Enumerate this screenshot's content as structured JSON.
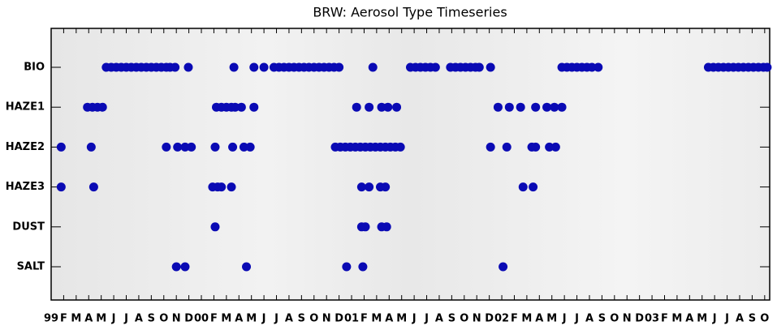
{
  "chart_data": {
    "type": "scatter",
    "title": "BRW: Aerosol Type Timeseries",
    "color": "#0a0ab4",
    "xlim": [
      0,
      57.4
    ],
    "xticks": [
      {
        "value": 0,
        "label": "99"
      },
      {
        "value": 1,
        "label": "F"
      },
      {
        "value": 2,
        "label": "M"
      },
      {
        "value": 3,
        "label": "A"
      },
      {
        "value": 4,
        "label": "M"
      },
      {
        "value": 5,
        "label": "J"
      },
      {
        "value": 6,
        "label": "J"
      },
      {
        "value": 7,
        "label": "A"
      },
      {
        "value": 8,
        "label": "S"
      },
      {
        "value": 9,
        "label": "O"
      },
      {
        "value": 10,
        "label": "N"
      },
      {
        "value": 11,
        "label": "D"
      },
      {
        "value": 12,
        "label": "00"
      },
      {
        "value": 13,
        "label": "F"
      },
      {
        "value": 14,
        "label": "M"
      },
      {
        "value": 15,
        "label": "A"
      },
      {
        "value": 16,
        "label": "M"
      },
      {
        "value": 17,
        "label": "J"
      },
      {
        "value": 18,
        "label": "J"
      },
      {
        "value": 19,
        "label": "A"
      },
      {
        "value": 20,
        "label": "S"
      },
      {
        "value": 21,
        "label": "O"
      },
      {
        "value": 22,
        "label": "N"
      },
      {
        "value": 23,
        "label": "D"
      },
      {
        "value": 24,
        "label": "01"
      },
      {
        "value": 25,
        "label": "F"
      },
      {
        "value": 26,
        "label": "M"
      },
      {
        "value": 27,
        "label": "A"
      },
      {
        "value": 28,
        "label": "M"
      },
      {
        "value": 29,
        "label": "J"
      },
      {
        "value": 30,
        "label": "J"
      },
      {
        "value": 31,
        "label": "A"
      },
      {
        "value": 32,
        "label": "S"
      },
      {
        "value": 33,
        "label": "O"
      },
      {
        "value": 34,
        "label": "N"
      },
      {
        "value": 35,
        "label": "D"
      },
      {
        "value": 36,
        "label": "02"
      },
      {
        "value": 37,
        "label": "F"
      },
      {
        "value": 38,
        "label": "M"
      },
      {
        "value": 39,
        "label": "A"
      },
      {
        "value": 40,
        "label": "M"
      },
      {
        "value": 41,
        "label": "J"
      },
      {
        "value": 42,
        "label": "J"
      },
      {
        "value": 43,
        "label": "A"
      },
      {
        "value": 44,
        "label": "S"
      },
      {
        "value": 45,
        "label": "O"
      },
      {
        "value": 46,
        "label": "N"
      },
      {
        "value": 47,
        "label": "D"
      },
      {
        "value": 48,
        "label": "03"
      },
      {
        "value": 49,
        "label": "F"
      },
      {
        "value": 50,
        "label": "M"
      },
      {
        "value": 51,
        "label": "A"
      },
      {
        "value": 52,
        "label": "M"
      },
      {
        "value": 53,
        "label": "J"
      },
      {
        "value": 54,
        "label": "J"
      },
      {
        "value": 55,
        "label": "A"
      },
      {
        "value": 56,
        "label": "S"
      },
      {
        "value": 57,
        "label": "O"
      }
    ],
    "rows": [
      {
        "label": "BIO",
        "x": [
          4.4,
          4.8,
          5.2,
          5.6,
          6.0,
          6.4,
          6.8,
          7.2,
          7.6,
          8.0,
          8.4,
          8.8,
          9.2,
          9.5,
          9.9,
          10.96,
          14.6,
          16.2,
          17.0,
          17.8,
          18.2,
          18.6,
          19.0,
          19.4,
          19.8,
          20.2,
          20.6,
          21.0,
          21.4,
          21.8,
          22.2,
          22.6,
          23.0,
          25.7,
          28.7,
          29.1,
          29.5,
          29.9,
          30.3,
          30.7,
          31.9,
          32.3,
          32.7,
          33.1,
          33.5,
          33.9,
          34.2,
          35.1,
          40.8,
          41.2,
          41.6,
          42.0,
          42.4,
          42.8,
          43.2,
          43.7,
          52.5,
          52.9,
          53.3,
          53.7,
          54.1,
          54.5,
          54.9,
          55.3,
          55.7,
          56.1,
          56.5,
          56.9,
          57.2
        ]
      },
      {
        "label": "HAZE1",
        "x": [
          2.9,
          3.3,
          3.7,
          4.1,
          13.2,
          13.6,
          14.0,
          14.4,
          14.7,
          15.2,
          16.2,
          24.4,
          25.4,
          26.4,
          26.9,
          27.6,
          35.7,
          36.6,
          37.5,
          38.7,
          39.6,
          40.2,
          40.8
        ]
      },
      {
        "label": "HAZE2",
        "x": [
          0.8,
          3.2,
          9.2,
          10.1,
          10.7,
          11.2,
          13.1,
          14.5,
          15.4,
          15.9,
          22.7,
          23.1,
          23.5,
          23.9,
          24.3,
          24.7,
          25.1,
          25.5,
          25.9,
          26.3,
          26.7,
          27.1,
          27.5,
          27.9,
          35.1,
          36.4,
          38.4,
          38.7,
          39.8,
          40.3
        ]
      },
      {
        "label": "HAZE3",
        "x": [
          0.8,
          3.4,
          12.9,
          13.3,
          13.6,
          14.4,
          24.8,
          25.4,
          26.3,
          26.7,
          37.7,
          38.5
        ]
      },
      {
        "label": "DUST",
        "x": [
          13.1,
          24.8,
          25.1,
          26.4,
          26.8
        ]
      },
      {
        "label": "SALT",
        "x": [
          10.0,
          10.7,
          15.6,
          23.6,
          24.9,
          36.1
        ]
      }
    ]
  }
}
